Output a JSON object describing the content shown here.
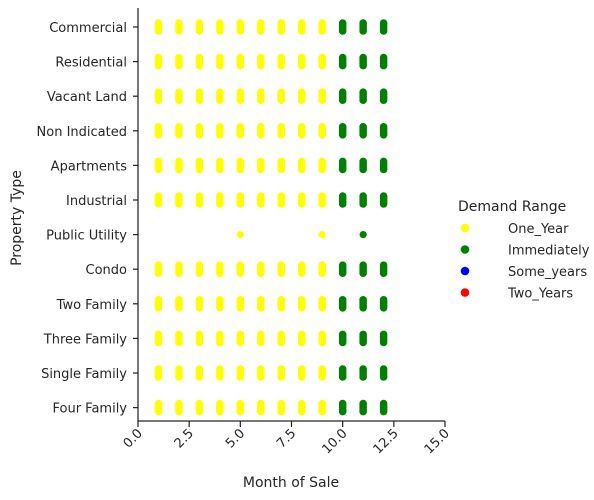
{
  "chart_data": {
    "type": "scatter",
    "title": "",
    "xlabel": "Month of Sale",
    "ylabel": "Property Type",
    "xlim": [
      0,
      15
    ],
    "x_ticks": [
      "0.0",
      "2.5",
      "5.0",
      "7.5",
      "10.0",
      "12.5",
      "15.0"
    ],
    "categories": [
      "Commercial",
      "Residential",
      "Vacant Land",
      "Non Indicated",
      "Apartments",
      "Industrial",
      "Public Utility",
      "Condo",
      "Two Family",
      "Three Family",
      "Single Family",
      "Four Family"
    ],
    "legend": {
      "title": "Demand Range",
      "placement": "right"
    },
    "series": [
      {
        "name": "One_Year",
        "color": "#ffff00",
        "points": [
          {
            "category": "Commercial",
            "months": [
              1,
              2,
              3,
              4,
              5,
              6,
              7,
              8,
              9
            ]
          },
          {
            "category": "Residential",
            "months": [
              1,
              2,
              3,
              4,
              5,
              6,
              7,
              8,
              9
            ]
          },
          {
            "category": "Vacant Land",
            "months": [
              1,
              2,
              3,
              4,
              5,
              6,
              7,
              8,
              9
            ]
          },
          {
            "category": "Non Indicated",
            "months": [
              1,
              2,
              3,
              4,
              5,
              6,
              7,
              8,
              9
            ]
          },
          {
            "category": "Apartments",
            "months": [
              1,
              2,
              3,
              4,
              5,
              6,
              7,
              8,
              9
            ]
          },
          {
            "category": "Industrial",
            "months": [
              1,
              2,
              3,
              4,
              5,
              6,
              7,
              8,
              9
            ]
          },
          {
            "category": "Public Utility",
            "months": [
              5,
              9
            ]
          },
          {
            "category": "Condo",
            "months": [
              1,
              2,
              3,
              4,
              5,
              6,
              7,
              8,
              9
            ]
          },
          {
            "category": "Two Family",
            "months": [
              1,
              2,
              3,
              4,
              5,
              6,
              7,
              8,
              9
            ]
          },
          {
            "category": "Three Family",
            "months": [
              1,
              2,
              3,
              4,
              5,
              6,
              7,
              8,
              9
            ]
          },
          {
            "category": "Single Family",
            "months": [
              1,
              2,
              3,
              4,
              5,
              6,
              7,
              8,
              9
            ]
          },
          {
            "category": "Four Family",
            "months": [
              1,
              2,
              3,
              4,
              5,
              6,
              7,
              8,
              9
            ]
          }
        ]
      },
      {
        "name": "Immediately",
        "color": "#008000",
        "points": [
          {
            "category": "Commercial",
            "months": [
              10,
              11,
              12
            ]
          },
          {
            "category": "Residential",
            "months": [
              10,
              11,
              12
            ]
          },
          {
            "category": "Vacant Land",
            "months": [
              10,
              11,
              12
            ]
          },
          {
            "category": "Non Indicated",
            "months": [
              10,
              11,
              12
            ]
          },
          {
            "category": "Apartments",
            "months": [
              10,
              11,
              12
            ]
          },
          {
            "category": "Industrial",
            "months": [
              10,
              11,
              12
            ]
          },
          {
            "category": "Public Utility",
            "months": [
              11
            ]
          },
          {
            "category": "Condo",
            "months": [
              10,
              11,
              12
            ]
          },
          {
            "category": "Two Family",
            "months": [
              10,
              11,
              12
            ]
          },
          {
            "category": "Three Family",
            "months": [
              10,
              11,
              12
            ]
          },
          {
            "category": "Single Family",
            "months": [
              10,
              11,
              12
            ]
          },
          {
            "category": "Four Family",
            "months": [
              10,
              11,
              12
            ]
          }
        ]
      },
      {
        "name": "Some_years",
        "color": "#0000ff",
        "points": []
      },
      {
        "name": "Two_Years",
        "color": "#ff0000",
        "points": []
      }
    ]
  }
}
